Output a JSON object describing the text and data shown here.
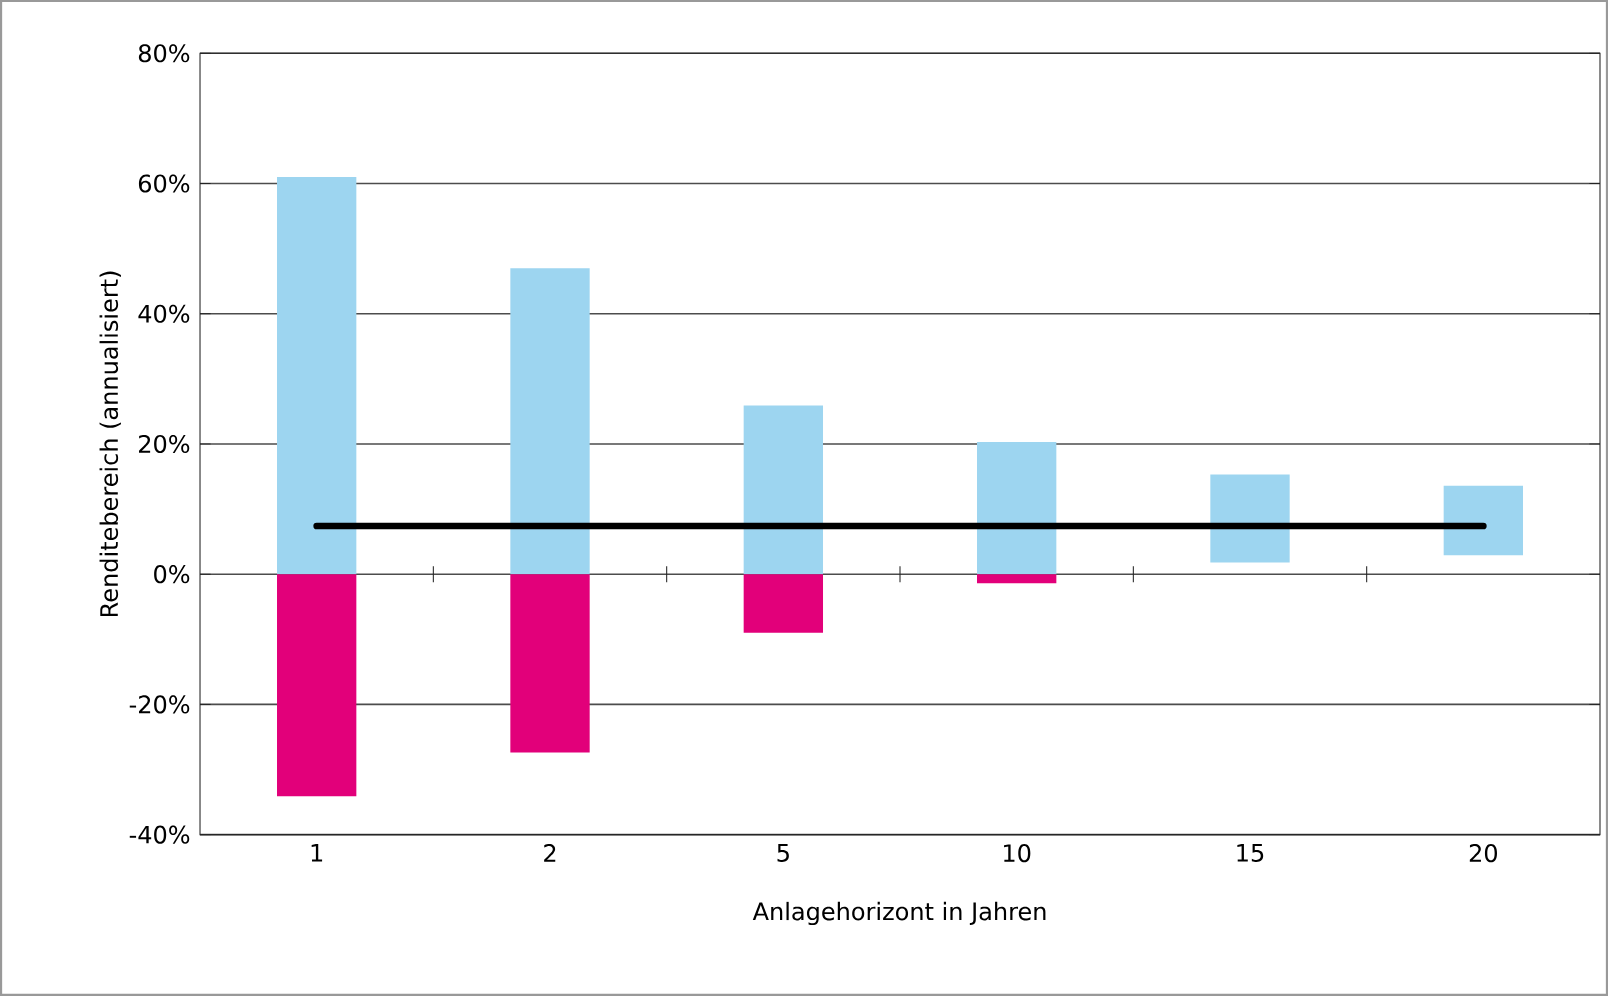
{
  "chart_data": {
    "type": "bar",
    "xlabel": "Anlagehorizont in Jahren",
    "ylabel": "Renditebereich (annualisiert)",
    "categories": [
      "1",
      "2",
      "5",
      "10",
      "15",
      "20"
    ],
    "series": [
      {
        "color": "#9dd5f0",
        "base": [
          0,
          0,
          0,
          0,
          1.8,
          2.9
        ],
        "values": [
          61.0,
          47.0,
          25.9,
          20.3,
          13.5,
          10.7
        ]
      },
      {
        "color": "#e2007a",
        "values": [
          -34.1,
          -27.4,
          -9.0,
          -1.4,
          null,
          null
        ]
      },
      {
        "type": "line",
        "color": "#000000",
        "values": [
          7.4,
          7.4,
          7.4,
          7.4,
          7.4,
          7.4
        ]
      }
    ],
    "ylim": [
      -40,
      80
    ],
    "yticks": [
      {
        "value": -40,
        "label": "-40%"
      },
      {
        "value": -20,
        "label": "-20%"
      },
      {
        "value": 0,
        "label": "0%"
      },
      {
        "value": 20,
        "label": "20%"
      },
      {
        "value": 40,
        "label": "40%"
      },
      {
        "value": 60,
        "label": "60%"
      },
      {
        "value": 80,
        "label": "80%"
      }
    ],
    "grid": "y"
  }
}
